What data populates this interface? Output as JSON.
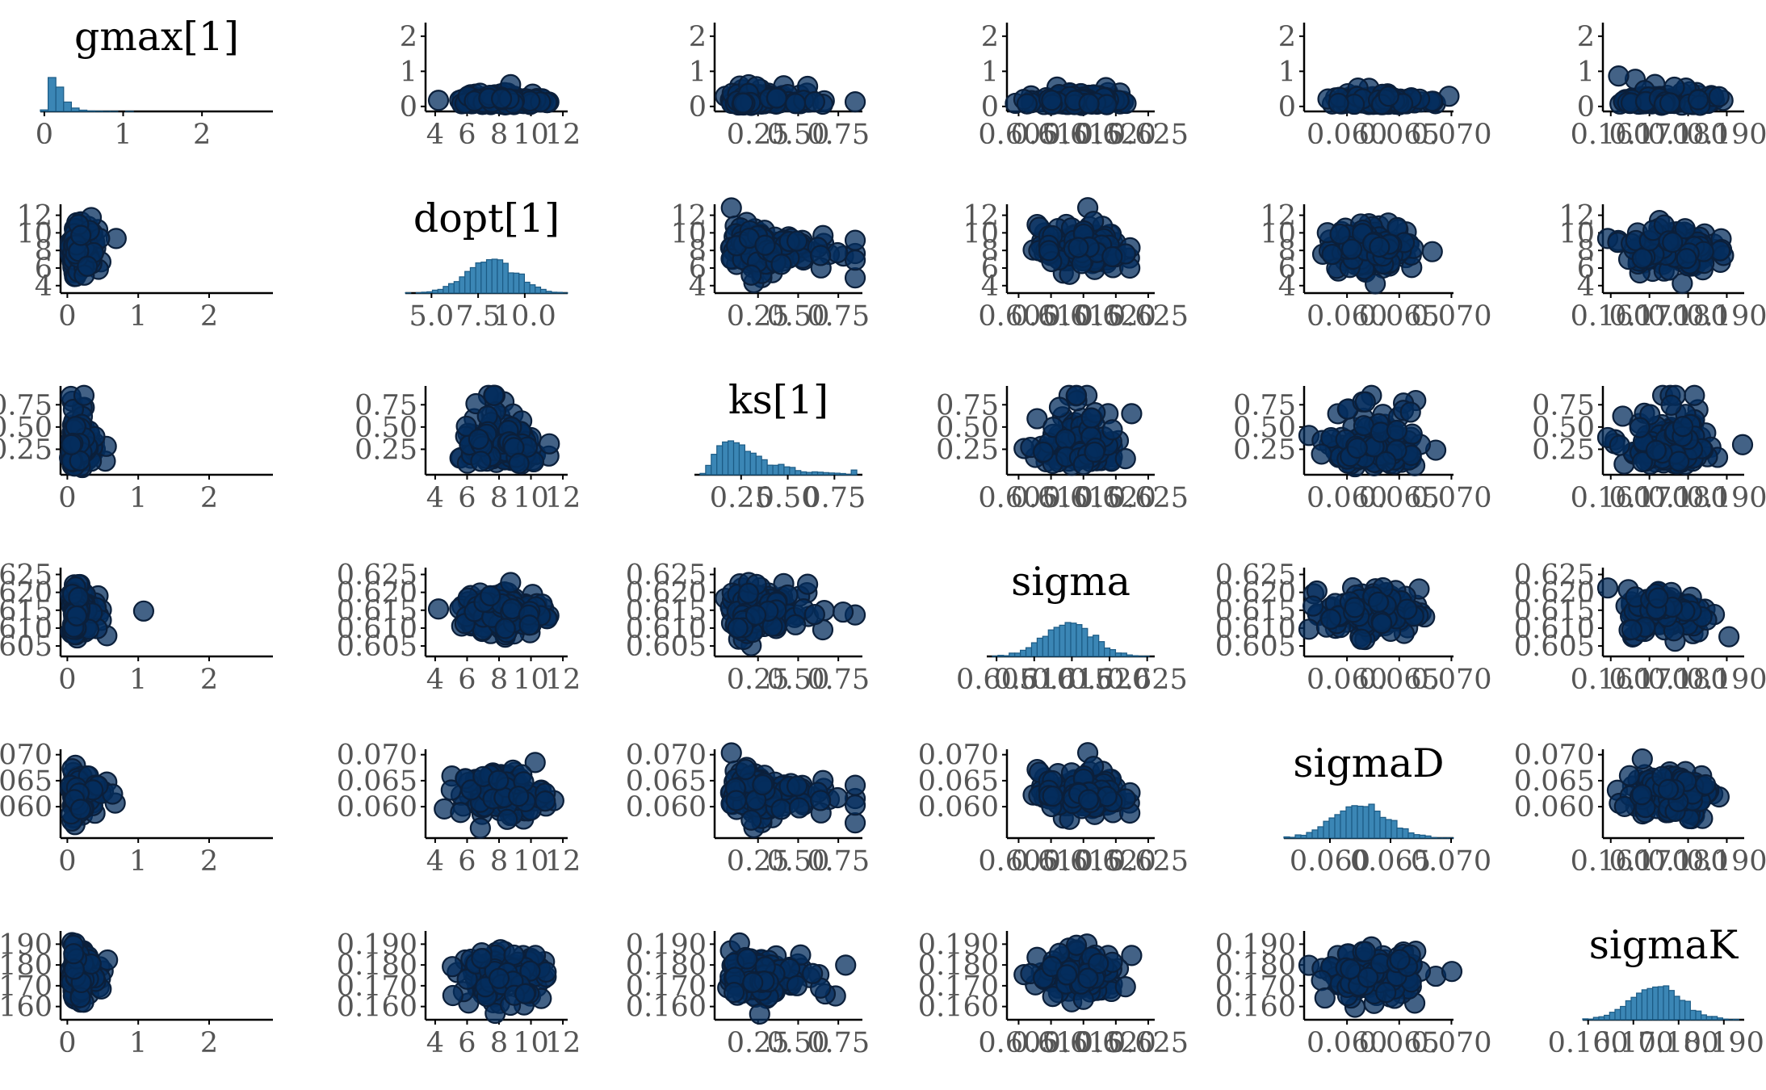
{
  "chart_data": {
    "type": "scatter",
    "layout": "pairs-matrix",
    "diagonal_type": "histogram",
    "colors": {
      "point_fill": "#042e5e",
      "point_edge": "#0b1f3a",
      "hist_fill": "#3b86b5",
      "hist_edge": "#1c5b85"
    },
    "variables": [
      {
        "name": "gmax[1]",
        "range": [
          -0.05,
          2.9
        ],
        "ticks": [
          "0",
          "1",
          "2"
        ],
        "tick_values": [
          0,
          1,
          2
        ],
        "mode": 0.15,
        "sd": 0.22,
        "skew": true
      },
      {
        "name": "dopt[1]",
        "range": [
          3.6,
          12.3
        ],
        "ticks": [
          "4",
          "6",
          "8",
          "10",
          "12"
        ],
        "tick_values": [
          4,
          6,
          8,
          10,
          12
        ],
        "hist_ticks": [
          "5.0",
          "7.5",
          "10.0"
        ],
        "hist_tick_values": [
          5.0,
          7.5,
          10.0
        ],
        "mode": 8.2,
        "sd": 1.3,
        "skew": false
      },
      {
        "name": "ks[1]",
        "range": [
          0.0,
          0.9
        ],
        "ticks": [
          "0.25",
          "0.50",
          "0.75"
        ],
        "tick_values": [
          0.25,
          0.5,
          0.75
        ],
        "mode": 0.25,
        "sd": 0.08,
        "skew": true
      },
      {
        "name": "sigma",
        "range": [
          0.6037,
          0.626
        ],
        "ticks": [
          "0.605",
          "0.610",
          "0.615",
          "0.620",
          "0.625"
        ],
        "tick_values": [
          0.605,
          0.61,
          0.615,
          0.62,
          0.625
        ],
        "mode": 0.6145,
        "sd": 0.0032,
        "skew": false
      },
      {
        "name": "sigmaD",
        "range": [
          0.0562,
          0.0702
        ],
        "ticks": [
          "0.060",
          "0.065",
          "0.070"
        ],
        "tick_values": [
          0.06,
          0.065,
          0.07
        ],
        "mode": 0.0625,
        "sd": 0.0022,
        "skew": false
      },
      {
        "name": "sigmaK",
        "range": [
          0.1588,
          0.1945
        ],
        "ticks": [
          "0.160",
          "0.170",
          "0.180",
          "0.190"
        ],
        "tick_values": [
          0.16,
          0.17,
          0.18,
          0.19
        ],
        "mode": 0.175,
        "sd": 0.0055,
        "skew": false
      }
    ],
    "offdiag_points_per_panel": 140
  }
}
